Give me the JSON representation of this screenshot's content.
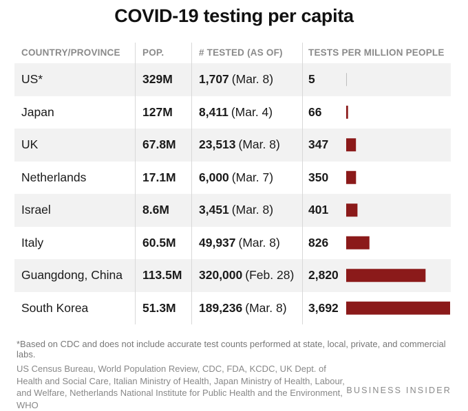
{
  "title": "COVID-19 testing per capita",
  "headers": {
    "country": "COUNTRY/PROVINCE",
    "pop": "POP.",
    "tested": "# TESTED (AS OF)",
    "per_million": "TESTS PER MILLION PEOPLE"
  },
  "rows": [
    {
      "country": "US*",
      "pop": "329M",
      "tested": "1,707",
      "date": "(Mar. 8)",
      "per_million": "5"
    },
    {
      "country": "Japan",
      "pop": "127M",
      "tested": "8,411",
      "date": "(Mar. 4)",
      "per_million": "66"
    },
    {
      "country": "UK",
      "pop": "67.8M",
      "tested": "23,513",
      "date": "(Mar. 8)",
      "per_million": "347"
    },
    {
      "country": "Netherlands",
      "pop": "17.1M",
      "tested": "6,000",
      "date": "(Mar. 7)",
      "per_million": "350"
    },
    {
      "country": "Israel",
      "pop": "8.6M",
      "tested": "3,451",
      "date": "(Mar. 8)",
      "per_million": "401"
    },
    {
      "country": "Italy",
      "pop": "60.5M",
      "tested": "49,937",
      "date": "(Mar. 8)",
      "per_million": "826"
    },
    {
      "country": "Guangdong, China",
      "pop": "113.5M",
      "tested": "320,000",
      "date": "(Feb. 28)",
      "per_million": "2,820"
    },
    {
      "country": "South Korea",
      "pop": "51.3M",
      "tested": "189,236",
      "date": "(Mar. 8)",
      "per_million": "3,692"
    }
  ],
  "footnote": "*Based on CDC and does not include accurate test counts performed at state, local, private, and commercial labs.",
  "sources": "US Census Bureau, World Population Review, CDC, FDA, KCDC, UK Dept. of Health and Social Care, Italian Ministry of Health, Japan Ministry of Health, Labour, and Welfare, Netherlands National Institute for Public Health and the Environment, WHO",
  "brand": "BUSINESS INSIDER",
  "colors": {
    "bar": "#8b1a1a",
    "stripe": "#f2f2f2"
  },
  "chart_data": {
    "type": "bar",
    "title": "COVID-19 testing per capita",
    "categories": [
      "US*",
      "Japan",
      "UK",
      "Netherlands",
      "Israel",
      "Italy",
      "Guangdong, China",
      "South Korea"
    ],
    "series": [
      {
        "name": "TESTS PER MILLION PEOPLE",
        "values": [
          5,
          66,
          347,
          350,
          401,
          826,
          2820,
          3692
        ]
      }
    ],
    "orientation": "horizontal",
    "xlim": [
      0,
      3692
    ]
  }
}
